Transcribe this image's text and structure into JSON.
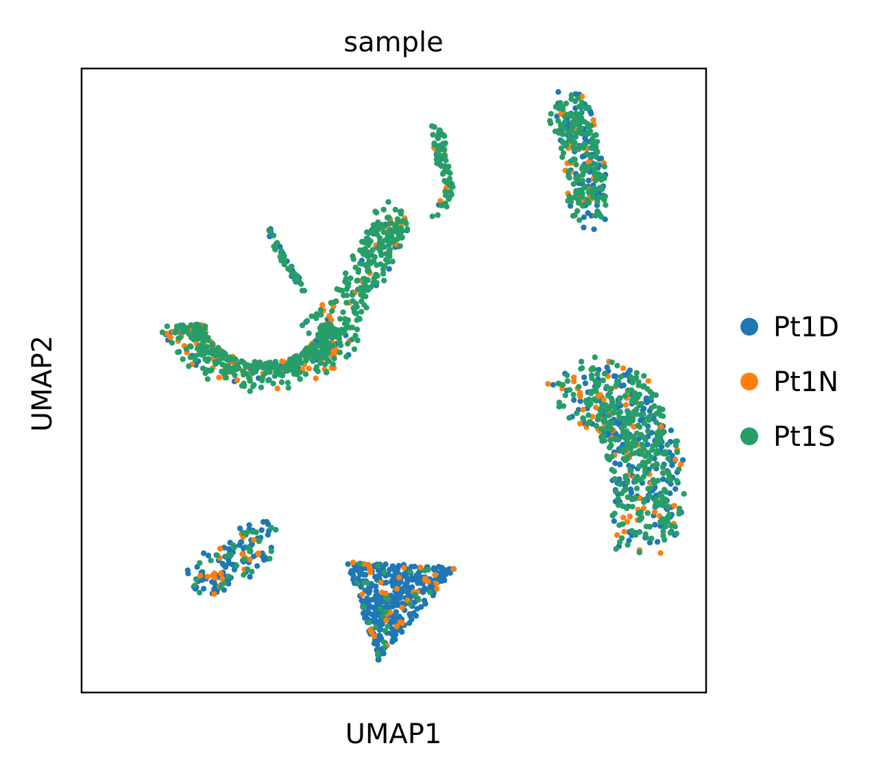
{
  "chart_data": {
    "type": "scatter",
    "title": "sample",
    "xlabel": "UMAP1",
    "ylabel": "UMAP2",
    "xlim": [
      0,
      10
    ],
    "ylim": [
      0,
      10
    ],
    "ticks": "none",
    "grid": false,
    "legend_position": "right",
    "series": [
      {
        "name": "Pt1D",
        "color": "#1f77b4"
      },
      {
        "name": "Pt1N",
        "color": "#ff7f0e"
      },
      {
        "name": "Pt1S",
        "color": "#279e68"
      }
    ],
    "clusters": [
      {
        "id": "upper-left-arc",
        "center": [
          2.6,
          5.1
        ],
        "mix": [
          0.12,
          0.18,
          0.7
        ]
      },
      {
        "id": "bridge-lobe",
        "center": [
          4.6,
          7.1
        ],
        "mix": [
          0.08,
          0.1,
          0.82
        ]
      },
      {
        "id": "thin-streak-left",
        "center": [
          3.4,
          7.2
        ],
        "mix": [
          0.3,
          0.0,
          0.7
        ]
      },
      {
        "id": "thin-streak-top",
        "center": [
          5.85,
          8.4
        ],
        "mix": [
          0.1,
          0.05,
          0.85
        ]
      },
      {
        "id": "top-right",
        "center": [
          8.0,
          8.6
        ],
        "mix": [
          0.3,
          0.1,
          0.6
        ]
      },
      {
        "id": "right",
        "center": [
          8.8,
          3.9
        ],
        "mix": [
          0.35,
          0.12,
          0.53
        ]
      },
      {
        "id": "bottom-center",
        "center": [
          5.3,
          1.6
        ],
        "mix": [
          0.85,
          0.08,
          0.07
        ]
      },
      {
        "id": "bottom-left",
        "center": [
          2.5,
          2.0
        ],
        "mix": [
          0.6,
          0.15,
          0.25
        ]
      }
    ]
  }
}
